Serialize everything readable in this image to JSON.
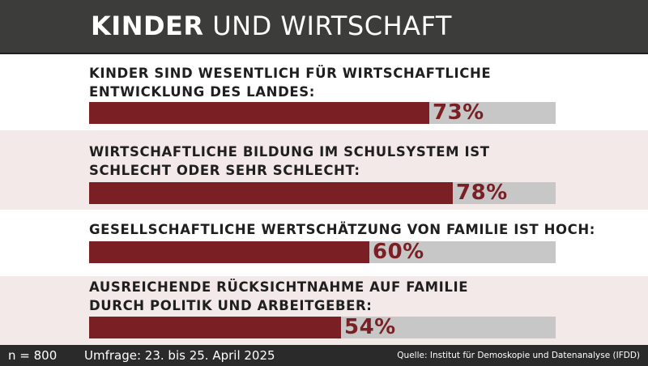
{
  "header": {
    "title_bold": "KINDER",
    "title_light": "UND WIRTSCHAFT"
  },
  "chart_data": {
    "type": "bar",
    "orientation": "horizontal",
    "title": "KINDER UND WIRTSCHAFT",
    "unit": "%",
    "xlim": [
      0,
      100
    ],
    "categories": [
      [
        "KINDER SIND WESENTLICH FÜR WIRTSCHAFTLICHE",
        "ENTWICKLUNG DES LANDES:"
      ],
      [
        "WIRTSCHAFTLICHE BILDUNG IM SCHULSYSTEM IST",
        "SCHLECHT ODER SEHR SCHLECHT:"
      ],
      [
        "GESELLSCHAFTLICHE WERTSCHÄTZUNG VON FAMILIE IST HOCH:"
      ],
      [
        "AUSREICHENDE RÜCKSICHTNAHME AUF FAMILIE",
        "DURCH POLITIK UND ARBEITGEBER:"
      ]
    ],
    "values": [
      73,
      78,
      60,
      54
    ],
    "value_labels": [
      "73%",
      "78%",
      "60%",
      "54%"
    ],
    "colors": {
      "fill": "#7a1f23",
      "track": "#c7c7c7",
      "band_alt": "#f4e9e9"
    }
  },
  "footer": {
    "n": "n = 800",
    "survey": "Umfrage: 23. bis 25. April 2025",
    "source": "Quelle: Institut für Demoskopie und Datenanalyse (IFDD)"
  }
}
